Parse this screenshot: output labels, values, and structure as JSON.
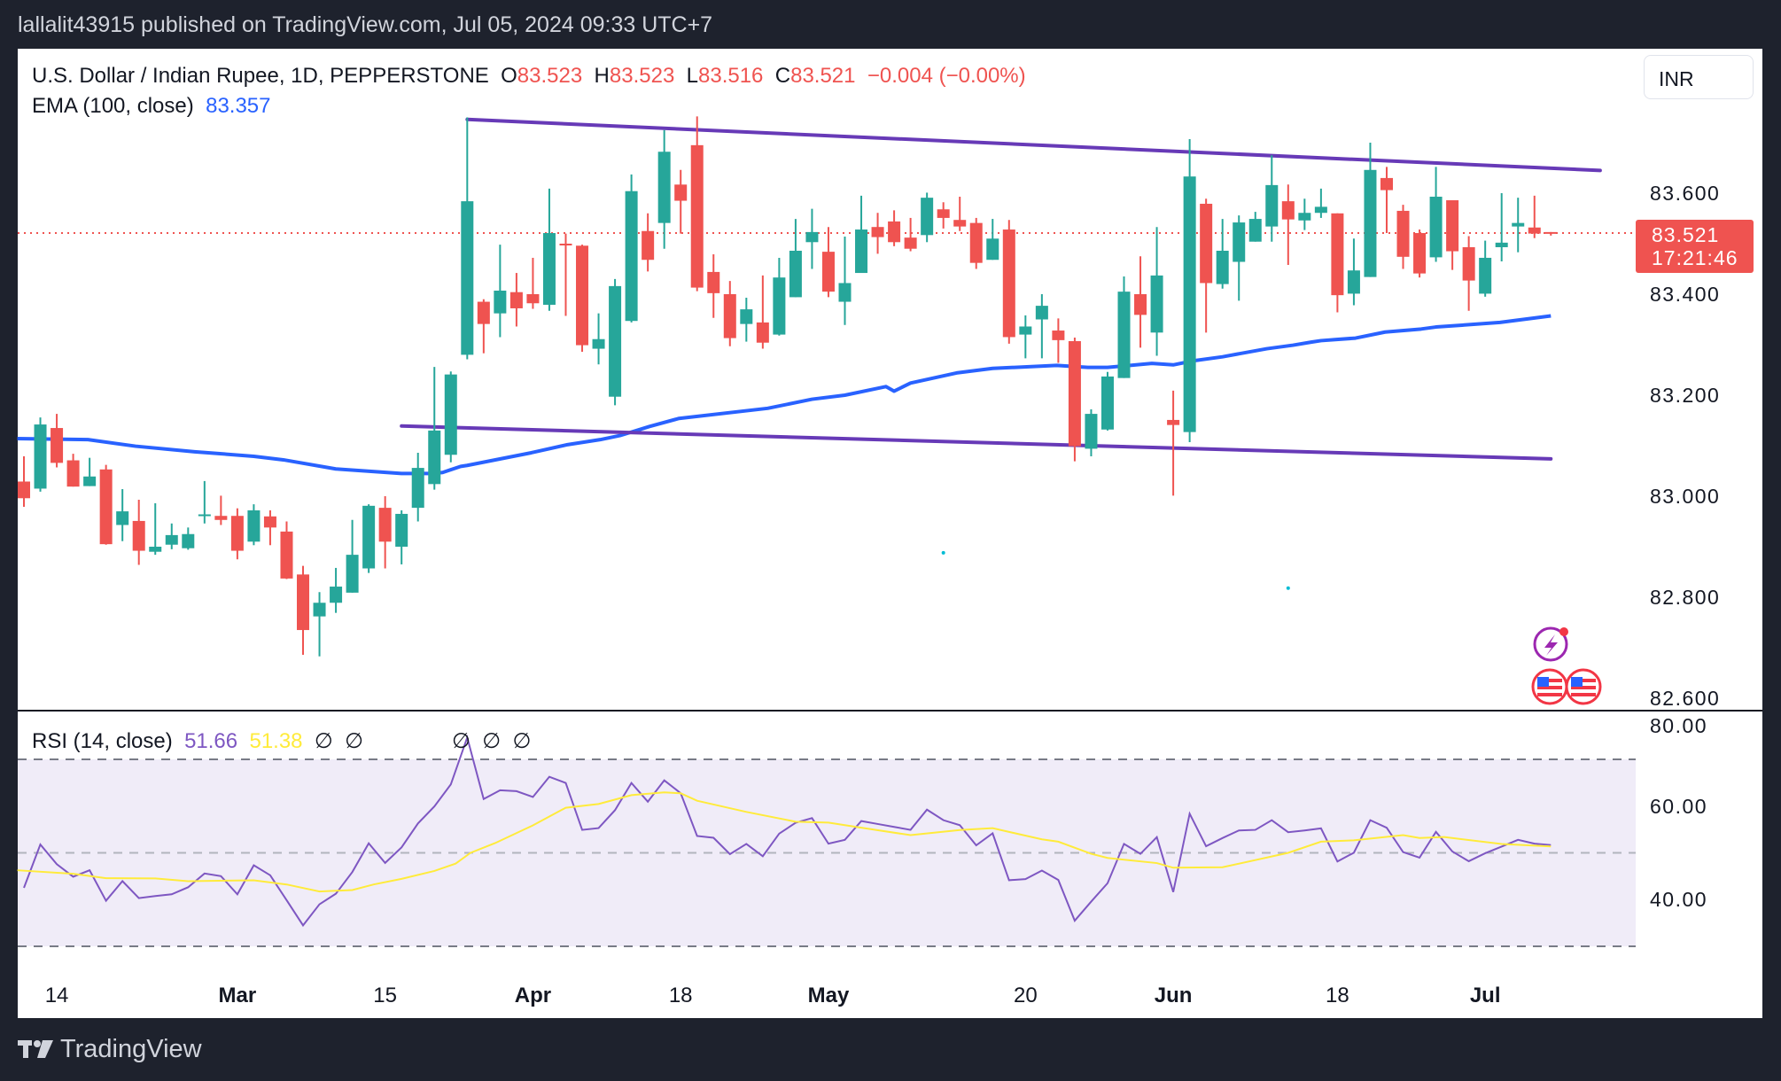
{
  "header": {
    "published": "lallalit43915 published on TradingView.com, Jul 05, 2024 09:33 UTC+7"
  },
  "legend": {
    "symbol": "U.S. Dollar / Indian Rupee, 1D, PEPPERSTONE",
    "o_label": "O",
    "o": "83.523",
    "h_label": "H",
    "h": "83.523",
    "l_label": "L",
    "l": "83.516",
    "c_label": "C",
    "c": "83.521",
    "change": "−0.004 (−0.00%)",
    "ema_label": "EMA (100, close)",
    "ema_value": "83.357",
    "rsi_label": "RSI (14, close)",
    "rsi_value": "51.66",
    "rsi_ma_value": "51.38",
    "rsi_na_1": "∅",
    "rsi_na_2": "∅",
    "marker_na_1": "∅",
    "marker_na_2": "∅",
    "marker_na_3": "∅"
  },
  "currency_button": "INR",
  "last_price": {
    "price": "83.521",
    "countdown": "17:21:46"
  },
  "footer": {
    "brand": "TradingView"
  },
  "colors": {
    "up": "#26a69a",
    "down": "#ef5350",
    "ema": "#2962ff",
    "trendline": "#673ab7",
    "rsi": "#7e57c2",
    "rsi_ma": "#ffeb3b",
    "rsi_band": "#f0ecf8"
  },
  "icons": [
    "lightning-event-icon",
    "us-flag-event-icon",
    "us-flag-event-icon"
  ],
  "chart_data": [
    {
      "type": "candlestick",
      "title": "U.S. Dollar / Indian Rupee, 1D, PEPPERSTONE",
      "ylim": [
        82.6,
        83.8
      ],
      "y_ticks": [
        "83.600",
        "83.400",
        "83.200",
        "83.000",
        "82.800",
        "82.600"
      ],
      "y_tick_values": [
        83.6,
        83.4,
        83.2,
        83.0,
        82.8,
        82.6
      ],
      "x_ticks": [
        {
          "label": "14",
          "index": 2,
          "bold": false
        },
        {
          "label": "Mar",
          "index": 13,
          "bold": true
        },
        {
          "label": "15",
          "index": 22,
          "bold": false
        },
        {
          "label": "Apr",
          "index": 31,
          "bold": true
        },
        {
          "label": "18",
          "index": 40,
          "bold": false
        },
        {
          "label": "May",
          "index": 49,
          "bold": true
        },
        {
          "label": "20",
          "index": 61,
          "bold": false
        },
        {
          "label": "Jun",
          "index": 70,
          "bold": true
        },
        {
          "label": "18",
          "index": 80,
          "bold": false
        },
        {
          "label": "Jul",
          "index": 89,
          "bold": true
        }
      ],
      "ohlc": [
        [
          83.029,
          83.079,
          82.979,
          82.996
        ],
        [
          83.015,
          83.156,
          83.009,
          83.142
        ],
        [
          83.135,
          83.163,
          83.057,
          83.066
        ],
        [
          83.071,
          83.084,
          83.019,
          83.019
        ],
        [
          83.02,
          83.076,
          83.02,
          83.039
        ],
        [
          83.053,
          83.062,
          82.904,
          82.905
        ],
        [
          82.943,
          83.014,
          82.911,
          82.97
        ],
        [
          82.951,
          82.993,
          82.864,
          82.892
        ],
        [
          82.89,
          82.986,
          82.884,
          82.9
        ],
        [
          82.904,
          82.946,
          82.895,
          82.923
        ],
        [
          82.897,
          82.938,
          82.894,
          82.925
        ],
        [
          82.962,
          83.03,
          82.946,
          82.964
        ],
        [
          82.961,
          83.001,
          82.943,
          82.953
        ],
        [
          82.961,
          82.976,
          82.875,
          82.892
        ],
        [
          82.91,
          82.984,
          82.903,
          82.972
        ],
        [
          82.96,
          82.972,
          82.903,
          82.938
        ],
        [
          82.93,
          82.95,
          82.836,
          82.837
        ],
        [
          82.845,
          82.862,
          82.686,
          82.735
        ],
        [
          82.762,
          82.81,
          82.683,
          82.789
        ],
        [
          82.789,
          82.858,
          82.769,
          82.821
        ],
        [
          82.809,
          82.953,
          82.809,
          82.884
        ],
        [
          82.857,
          82.984,
          82.848,
          82.981
        ],
        [
          82.977,
          83.0,
          82.857,
          82.91
        ],
        [
          82.9,
          82.972,
          82.865,
          82.965
        ],
        [
          82.977,
          83.086,
          82.95,
          83.056
        ],
        [
          83.024,
          83.256,
          83.013,
          83.13
        ],
        [
          83.082,
          83.247,
          83.067,
          83.241
        ],
        [
          83.28,
          83.75,
          83.271,
          83.584
        ],
        [
          83.385,
          83.39,
          83.283,
          83.341
        ],
        [
          83.362,
          83.498,
          83.315,
          83.407
        ],
        [
          83.404,
          83.442,
          83.336,
          83.372
        ],
        [
          83.4,
          83.472,
          83.371,
          83.382
        ],
        [
          83.379,
          83.609,
          83.367,
          83.521
        ],
        [
          83.5,
          83.52,
          83.357,
          83.497
        ],
        [
          83.496,
          83.498,
          83.286,
          83.299
        ],
        [
          83.292,
          83.362,
          83.261,
          83.311
        ],
        [
          83.197,
          83.43,
          83.18,
          83.416
        ],
        [
          83.347,
          83.637,
          83.344,
          83.604
        ],
        [
          83.525,
          83.56,
          83.445,
          83.468
        ],
        [
          83.541,
          83.725,
          83.49,
          83.682
        ],
        [
          83.617,
          83.646,
          83.52,
          83.585
        ],
        [
          83.695,
          83.752,
          83.406,
          83.413
        ],
        [
          83.444,
          83.479,
          83.353,
          83.402
        ],
        [
          83.4,
          83.426,
          83.297,
          83.313
        ],
        [
          83.341,
          83.393,
          83.306,
          83.37
        ],
        [
          83.344,
          83.437,
          83.292,
          83.304
        ],
        [
          83.32,
          83.472,
          83.318,
          83.433
        ],
        [
          83.394,
          83.549,
          83.394,
          83.486
        ],
        [
          83.503,
          83.569,
          83.45,
          83.523
        ],
        [
          83.484,
          83.533,
          83.394,
          83.405
        ],
        [
          83.385,
          83.514,
          83.339,
          83.422
        ],
        [
          83.442,
          83.595,
          83.442,
          83.528
        ],
        [
          83.533,
          83.561,
          83.48,
          83.513
        ],
        [
          83.544,
          83.566,
          83.495,
          83.503
        ],
        [
          83.512,
          83.551,
          83.485,
          83.49
        ],
        [
          83.517,
          83.601,
          83.503,
          83.591
        ],
        [
          83.568,
          83.582,
          83.53,
          83.551
        ],
        [
          83.547,
          83.593,
          83.525,
          83.534
        ],
        [
          83.541,
          83.551,
          83.45,
          83.462
        ],
        [
          83.468,
          83.549,
          83.468,
          83.51
        ],
        [
          83.528,
          83.547,
          83.302,
          83.315
        ],
        [
          83.32,
          83.358,
          83.273,
          83.336
        ],
        [
          83.35,
          83.4,
          83.273,
          83.377
        ],
        [
          83.328,
          83.352,
          83.264,
          83.309
        ],
        [
          83.307,
          83.314,
          83.069,
          83.099
        ],
        [
          83.094,
          83.172,
          83.079,
          83.163
        ],
        [
          83.132,
          83.246,
          83.13,
          83.237
        ],
        [
          83.234,
          83.435,
          83.234,
          83.405
        ],
        [
          83.4,
          83.475,
          83.294,
          83.359
        ],
        [
          83.324,
          83.533,
          83.278,
          83.437
        ],
        [
          83.151,
          83.209,
          83.001,
          83.141
        ],
        [
          83.127,
          83.707,
          83.107,
          83.633
        ],
        [
          83.579,
          83.589,
          83.324,
          83.422
        ],
        [
          83.42,
          83.549,
          83.411,
          83.486
        ],
        [
          83.464,
          83.556,
          83.387,
          83.542
        ],
        [
          83.504,
          83.563,
          83.504,
          83.549
        ],
        [
          83.534,
          83.675,
          83.504,
          83.616
        ],
        [
          83.584,
          83.617,
          83.458,
          83.548
        ],
        [
          83.546,
          83.589,
          83.527,
          83.561
        ],
        [
          83.561,
          83.609,
          83.551,
          83.573
        ],
        [
          83.56,
          83.56,
          83.364,
          83.398
        ],
        [
          83.401,
          83.51,
          83.378,
          83.447
        ],
        [
          83.434,
          83.7,
          83.434,
          83.646
        ],
        [
          83.63,
          83.652,
          83.521,
          83.606
        ],
        [
          83.565,
          83.577,
          83.45,
          83.474
        ],
        [
          83.521,
          83.528,
          83.433,
          83.441
        ],
        [
          83.473,
          83.652,
          83.464,
          83.593
        ],
        [
          83.586,
          83.586,
          83.448,
          83.485
        ],
        [
          83.493,
          83.515,
          83.367,
          83.427
        ],
        [
          83.401,
          83.506,
          83.395,
          83.472
        ],
        [
          83.493,
          83.6,
          83.465,
          83.502
        ],
        [
          83.534,
          83.591,
          83.483,
          83.541
        ],
        [
          83.532,
          83.595,
          83.511,
          83.52
        ],
        [
          83.523,
          83.523,
          83.516,
          83.521
        ]
      ],
      "ema_100": [
        [
          -0.4,
          83.114
        ],
        [
          3.9,
          83.112
        ],
        [
          6.8,
          83.099
        ],
        [
          10.4,
          83.088
        ],
        [
          14.0,
          83.079
        ],
        [
          15.8,
          83.072
        ],
        [
          19.0,
          83.054
        ],
        [
          23.0,
          83.045
        ],
        [
          24.8,
          83.045
        ],
        [
          26.6,
          83.059
        ],
        [
          25.5,
          83.047
        ],
        [
          27.0,
          83.061
        ],
        [
          30.9,
          83.086
        ],
        [
          33.1,
          83.102
        ],
        [
          35.1,
          83.112
        ],
        [
          36.3,
          83.12
        ],
        [
          38.1,
          83.138
        ],
        [
          39.9,
          83.154
        ],
        [
          45.3,
          83.174
        ],
        [
          48.0,
          83.192
        ],
        [
          50.0,
          83.2
        ],
        [
          52.5,
          83.217
        ],
        [
          53.0,
          83.208
        ],
        [
          54.0,
          83.224
        ],
        [
          56.8,
          83.244
        ],
        [
          59.0,
          83.253
        ],
        [
          62.9,
          83.259
        ],
        [
          64.8,
          83.255
        ],
        [
          66.0,
          83.255
        ],
        [
          68.7,
          83.263
        ],
        [
          70.0,
          83.26
        ],
        [
          71.2,
          83.268
        ],
        [
          73.0,
          83.276
        ],
        [
          75.7,
          83.292
        ],
        [
          78.4,
          83.305
        ],
        [
          77.3,
          83.299
        ],
        [
          79.0,
          83.308
        ],
        [
          81.1,
          83.313
        ],
        [
          82.9,
          83.325
        ],
        [
          85.1,
          83.331
        ],
        [
          86.0,
          83.335
        ],
        [
          89.9,
          83.344
        ],
        [
          93.0,
          83.357
        ]
      ],
      "trendlines": [
        {
          "name": "upper-resistance",
          "from": [
            27.0,
            83.746
          ],
          "to": [
            96.0,
            83.645
          ]
        },
        {
          "name": "lower-support",
          "from": [
            23.0,
            83.139
          ],
          "to": [
            93.0,
            83.074
          ]
        }
      ],
      "last_price_line": 83.521,
      "dots": [
        [
          56.0,
          82.888
        ],
        [
          77.0,
          82.818
        ]
      ]
    },
    {
      "type": "line",
      "title": "RSI (14, close)",
      "ylim": [
        30,
        70
      ],
      "y_ticks": [
        "80.00",
        "60.00",
        "40.00"
      ],
      "y_tick_values": [
        80,
        60,
        40
      ],
      "bands": {
        "upper": 70,
        "middle": 50,
        "lower": 30
      },
      "rsi": [
        42.47,
        51.8,
        47.57,
        44.87,
        46.25,
        39.7,
        43.92,
        40.27,
        40.71,
        41.09,
        42.6,
        45.56,
        44.99,
        41.09,
        47.32,
        45.18,
        39.83,
        34.41,
        38.94,
        41.21,
        45.87,
        52.05,
        47.83,
        51.17,
        56.33,
        59.98,
        64.71,
        74.79,
        61.56,
        63.45,
        63.26,
        62.0,
        66.35,
        65.02,
        54.94,
        55.32,
        59.17,
        65.02,
        61.0,
        65.59,
        62.82,
        53.62,
        53.24,
        49.72,
        51.92,
        49.28,
        54.13,
        56.46,
        57.46,
        51.98,
        52.8,
        56.83,
        56.2,
        55.57,
        54.94,
        59.29,
        57.02,
        55.95,
        51.61,
        54.19,
        44.11,
        44.36,
        46.19,
        44.17,
        35.42,
        39.51,
        43.48,
        51.92,
        49.78,
        53.37,
        41.59,
        58.41,
        51.42,
        53.18,
        54.82,
        54.94,
        57.02,
        54.44,
        54.82,
        55.26,
        48.14,
        50.03,
        57.02,
        55.39,
        50.16,
        48.96,
        54.5,
        50.28,
        48.2,
        49.91,
        51.35,
        52.8,
        51.98,
        51.66
      ],
      "rsi_ma": [
        [
          -0.4,
          46.25
        ],
        [
          3,
          45.5
        ],
        [
          5,
          44.55
        ],
        [
          8,
          44.5
        ],
        [
          10,
          43.9
        ],
        [
          14,
          44.1
        ],
        [
          16,
          43.2
        ],
        [
          18,
          41.7
        ],
        [
          20,
          42.0
        ],
        [
          21.3,
          43.2
        ],
        [
          23,
          44.4
        ],
        [
          25,
          46.1
        ],
        [
          26.3,
          47.7
        ],
        [
          27.2,
          50.0
        ],
        [
          28.7,
          52.1
        ],
        [
          31,
          55.9
        ],
        [
          33,
          59.7
        ],
        [
          35,
          60.5
        ],
        [
          37,
          62.4
        ],
        [
          39,
          63.0
        ],
        [
          40,
          62.8
        ],
        [
          41,
          61.2
        ],
        [
          44,
          58.8
        ],
        [
          47,
          56.7
        ],
        [
          49,
          56.5
        ],
        [
          51,
          55.4
        ],
        [
          54,
          53.8
        ],
        [
          57,
          54.9
        ],
        [
          59,
          55.3
        ],
        [
          62,
          52.9
        ],
        [
          63,
          52.4
        ],
        [
          65,
          49.8
        ],
        [
          66,
          48.9
        ],
        [
          69,
          47.8
        ],
        [
          70,
          46.8
        ],
        [
          73,
          46.9
        ],
        [
          77,
          50.0
        ],
        [
          79,
          52.4
        ],
        [
          81,
          52.7
        ],
        [
          84,
          53.8
        ],
        [
          85,
          53.2
        ],
        [
          86.5,
          53.4
        ],
        [
          90,
          51.9
        ],
        [
          93,
          51.38
        ]
      ]
    }
  ]
}
